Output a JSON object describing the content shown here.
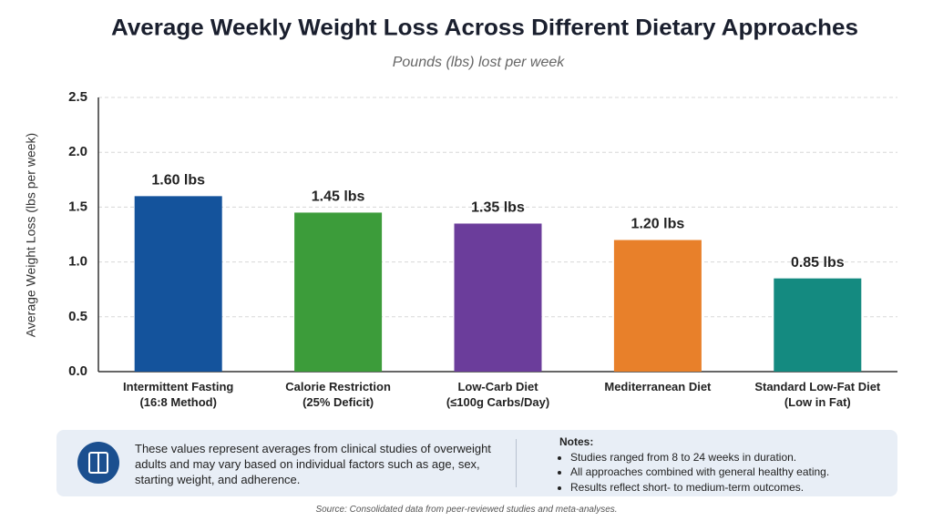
{
  "chart_data": {
    "type": "bar",
    "title": "Average Weekly Weight Loss Across Different Dietary Approaches",
    "subtitle": "Pounds (lbs) lost per week",
    "y_label": "Average Weight Loss (lbs per week)",
    "categories": [
      "Intermittent Fasting\n(16:8 Method)",
      "Calorie Restriction\n(25% Deficit)",
      "Low-Carb Diet\n(≤100g Carbs/Day)",
      "Mediterranean Diet",
      "Standard Low-Fat Diet\n(Low in Fat)"
    ],
    "values": [
      1.6,
      1.45,
      1.35,
      1.2,
      0.85
    ],
    "value_labels": [
      "1.60 lbs",
      "1.45 lbs",
      "1.35 lbs",
      "1.20 lbs",
      "0.85 lbs"
    ],
    "colors": [
      "#14539c",
      "#3c9c3a",
      "#6b3d9b",
      "#e8802a",
      "#148a80"
    ],
    "ylim": [
      0,
      2.5
    ],
    "yticks": [
      {
        "value": 0,
        "label": "0.0"
      },
      0.5,
      {
        "value": 1,
        "label": "1.0"
      },
      1.5,
      {
        "value": 2,
        "label": "2.0"
      },
      2.5
    ],
    "grid": true
  },
  "info_panel": {
    "text": "These values represent averages from clinical studies of overweight adults and may vary based on individual factors such as age, sex, starting weight, and adherence.",
    "notes_title": "Notes:",
    "notes": [
      "Studies ranged from 8 to 24 weeks in duration.",
      "All approaches combined with general healthy eating.",
      "Results reflect short- to medium-term outcomes."
    ]
  },
  "source": "Source: Consolidated data from peer-reviewed studies and meta-analyses."
}
